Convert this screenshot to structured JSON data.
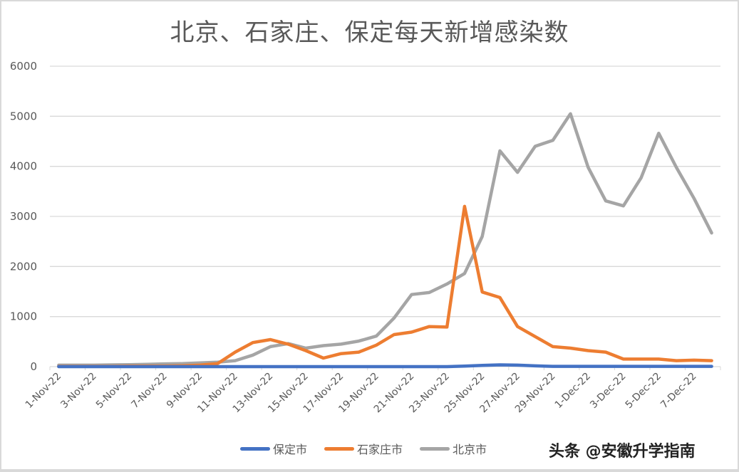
{
  "chart_data": {
    "type": "line",
    "title": "北京、石家庄、保定每天新增感染数",
    "xlabel": "",
    "ylabel": "",
    "ylim": [
      0,
      6000
    ],
    "yticks": [
      0,
      1000,
      2000,
      3000,
      4000,
      5000,
      6000
    ],
    "grid": true,
    "legend_position": "bottom",
    "x": [
      "1-Nov-22",
      "2-Nov-22",
      "3-Nov-22",
      "4-Nov-22",
      "5-Nov-22",
      "6-Nov-22",
      "7-Nov-22",
      "8-Nov-22",
      "9-Nov-22",
      "10-Nov-22",
      "11-Nov-22",
      "12-Nov-22",
      "13-Nov-22",
      "14-Nov-22",
      "15-Nov-22",
      "16-Nov-22",
      "17-Nov-22",
      "18-Nov-22",
      "19-Nov-22",
      "20-Nov-22",
      "21-Nov-22",
      "22-Nov-22",
      "23-Nov-22",
      "24-Nov-22",
      "25-Nov-22",
      "26-Nov-22",
      "27-Nov-22",
      "28-Nov-22",
      "29-Nov-22",
      "30-Nov-22",
      "1-Dec-22",
      "2-Dec-22",
      "3-Dec-22",
      "4-Dec-22",
      "5-Dec-22",
      "6-Dec-22",
      "7-Dec-22",
      "8-Dec-22"
    ],
    "tick_labels": [
      "1-Nov-22",
      "3-Nov-22",
      "5-Nov-22",
      "7-Nov-22",
      "9-Nov-22",
      "11-Nov-22",
      "13-Nov-22",
      "15-Nov-22",
      "17-Nov-22",
      "19-Nov-22",
      "21-Nov-22",
      "23-Nov-22",
      "25-Nov-22",
      "27-Nov-22",
      "29-Nov-22",
      "1-Dec-22",
      "3-Dec-22",
      "5-Dec-22",
      "7-Dec-22"
    ],
    "series": [
      {
        "name": "保定市",
        "color": "#4472C4",
        "values": [
          0,
          0,
          0,
          0,
          0,
          0,
          0,
          0,
          0,
          0,
          0,
          0,
          0,
          0,
          0,
          0,
          0,
          0,
          0,
          0,
          0,
          0,
          0,
          10,
          25,
          35,
          30,
          15,
          5,
          5,
          5,
          5,
          5,
          5,
          5,
          5,
          5,
          5
        ]
      },
      {
        "name": "石家庄市",
        "color": "#ED7D31",
        "values": [
          5,
          5,
          5,
          5,
          10,
          10,
          10,
          15,
          30,
          60,
          290,
          480,
          540,
          450,
          320,
          170,
          260,
          290,
          430,
          640,
          690,
          800,
          790,
          3200,
          1490,
          1380,
          800,
          600,
          400,
          370,
          320,
          290,
          150,
          150,
          150,
          120,
          130,
          120
        ]
      },
      {
        "name": "北京市",
        "color": "#A5A5A5",
        "values": [
          30,
          30,
          30,
          35,
          40,
          45,
          55,
          60,
          75,
          90,
          120,
          230,
          400,
          460,
          370,
          420,
          450,
          510,
          610,
          970,
          1440,
          1480,
          1650,
          1860,
          2600,
          4310,
          3880,
          4400,
          4520,
          5050,
          3980,
          3310,
          3210,
          3770,
          4660,
          3980,
          3360,
          2670
        ]
      }
    ]
  },
  "legend": {
    "items": [
      {
        "label": "保定市",
        "color": "#4472C4"
      },
      {
        "label": "石家庄市",
        "color": "#ED7D31"
      },
      {
        "label": "北京市",
        "color": "#A5A5A5"
      }
    ]
  },
  "watermark": "头条 @安徽升学指南"
}
